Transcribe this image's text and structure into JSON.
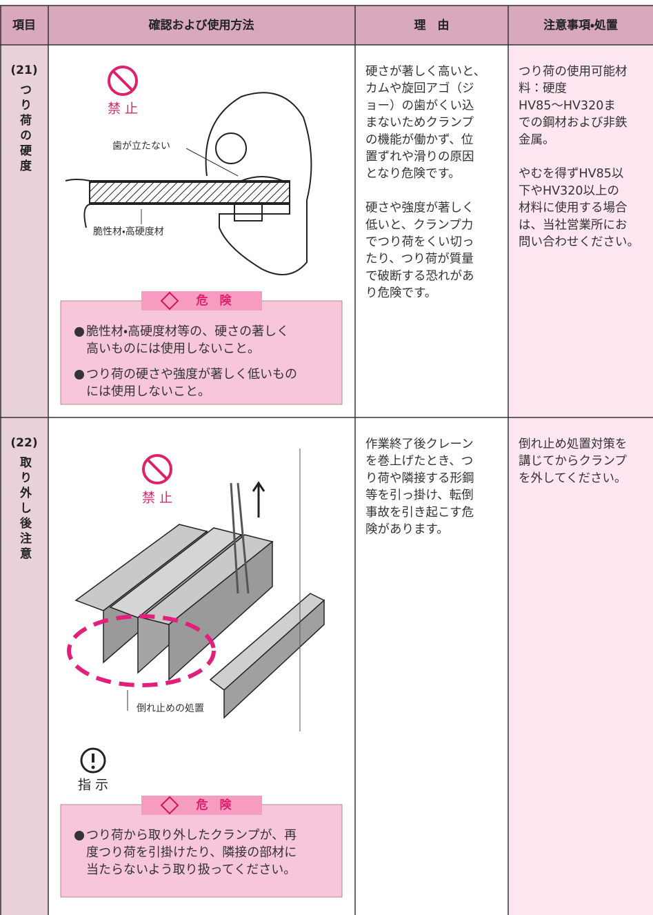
{
  "header": {
    "columns": [
      "項目",
      "確認および使用方法",
      "理　由",
      "注意事項・処置"
    ]
  },
  "rows": [
    {
      "number": "(21)",
      "item": "つり荷の硬度",
      "prohibit": "禁 止",
      "labels": [
        "歯が立たない",
        "脆性材・高硬度材"
      ],
      "danger": {
        "title": "危　険",
        "bullets": [
          [
            "脆性材・高硬度材等の、硬さの著しく",
            "高いものには使用しないこと。"
          ],
          [
            "つり荷の硬さや強度が著しく低いもの",
            "には使用しないこと。"
          ]
        ]
      },
      "reason": [
        [
          "硬さが著しく高いと、",
          "カムや旋回アゴ（ジ",
          "ョー）の歯がくい込",
          "まないためクランプ",
          "の機能が働かず、位",
          "置ずれや滑りの原因",
          "となり危険です。"
        ],
        [
          "硬さや強度が著しく",
          "低いと、クランプ力",
          "でつり荷をくい切っ",
          "たり、つり荷が質量",
          "で破断する恐れがあ",
          "り危険です。"
        ]
      ],
      "notes": [
        [
          "つり荷の使用可能材",
          "料：硬度",
          "HV85～HV320ま",
          "での鋼材および非鉄",
          "金属。"
        ],
        [
          "やむを得ずHV85以",
          "下やHV320以上の",
          "材料に使用する場合",
          "は、当社営業所にお",
          "問い合わせください。"
        ]
      ]
    },
    {
      "number": "(22)",
      "item": "取り外し後注意",
      "prohibit": "禁 止",
      "labels": [
        "倒れ止めの処置"
      ],
      "instruction": "指 示",
      "danger": {
        "title": "危　険",
        "bullets": [
          [
            "つり荷から取り外したクランプが、再",
            "度つり荷を引掛けたり、隣接の部材に",
            "当たらないよう取り扱ってください。"
          ]
        ]
      },
      "reason": [
        [
          "作業終了後クレーン",
          "を巻上げたとき、つ",
          "り荷や隣接する形鋼",
          "等を引っ掛け、転倒",
          "事故を引き起こす危",
          "険があります。"
        ]
      ],
      "notes": [
        [
          "倒れ止め処置対策を",
          "講じてからクランプ",
          "を外してください。"
        ]
      ]
    }
  ]
}
